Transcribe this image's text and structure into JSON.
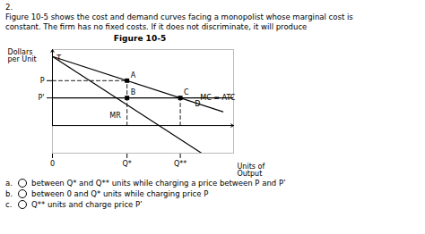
{
  "chart_data": {
    "type": "line",
    "title": "Figure 10-5",
    "xlabel": "Units of\nOutput",
    "ylabel": "Dollars\nper Unit",
    "question_number": "2.",
    "question_text": [
      "Figure 10-5 shows the cost and demand curves facing a monopolist whose marginal cost is",
      "constant. The firm has no fixed costs. If it does not discriminate, it will produce"
    ],
    "answer_labels": [
      "a.",
      "b.",
      "c."
    ],
    "answer_choices": [
      "between Q* and Q** units while charging a price between P and P’",
      "between 0 and Q* units while charging price P",
      "Q** units and charge price P’"
    ],
    "color": "#000000",
    "xlim": [
      0,
      8.5
    ],
    "ylim": [
      -4,
      11
    ],
    "xticks": [
      0,
      {
        "value": 3.5,
        "label": "Q*"
      },
      {
        "value": 6.0,
        "label": "Q**"
      }
    ],
    "yticks": [
      {
        "value": 6.5,
        "label": "P"
      },
      {
        "value": 4.0,
        "label": "P'"
      }
    ],
    "series": [
      {
        "type": "line",
        "line_style": "solid",
        "x": [
          0,
          8.0
        ],
        "values": [
          10,
          2.0
        ]
      },
      {
        "type": "line",
        "line_style": "solid",
        "x": [
          0,
          7.0
        ],
        "values": [
          10,
          -4.0
        ]
      },
      {
        "type": "line",
        "line_style": "solid",
        "x": [
          0,
          8.5
        ],
        "values": [
          4.0,
          4.0
        ]
      },
      {
        "type": "line",
        "line_style": "dashed",
        "x": [
          0,
          3.5
        ],
        "values": [
          6.5,
          6.5
        ]
      },
      {
        "type": "line",
        "line_style": "dashed",
        "x": [
          3.5,
          3.5
        ],
        "values": [
          0,
          6.5
        ]
      },
      {
        "type": "line",
        "line_style": "dashed",
        "x": [
          6.0,
          6.0
        ],
        "values": [
          0,
          4.0
        ]
      },
      {
        "type": "scatter",
        "marker": "square",
        "x": [
          3.5,
          3.5,
          6.0
        ],
        "values": [
          6.5,
          4.0,
          4.0
        ],
        "point_labels": [
          "A",
          "B",
          "C"
        ]
      }
    ],
    "annotations": [
      {
        "text": "T",
        "x": 0.12,
        "y": 9.7
      },
      {
        "text": "D",
        "x": 6.6,
        "y": 3.1
      },
      {
        "text": "MR",
        "x": 2.6,
        "y": 1.5
      },
      {
        "text": "MC = ATC",
        "x": 6.85,
        "y": 4.0
      }
    ]
  }
}
